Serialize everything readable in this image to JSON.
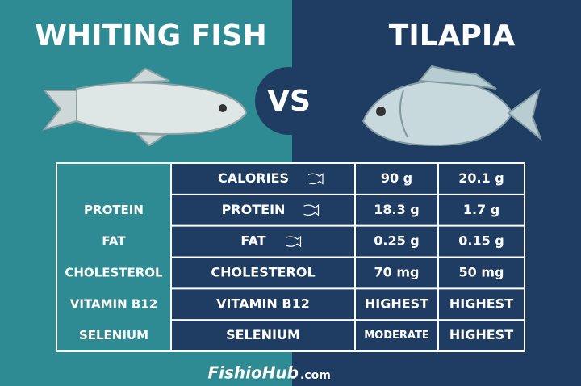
{
  "header": {
    "left_title": "WHITING FISH",
    "right_title": "TILAPIA",
    "vs": "VS"
  },
  "table": {
    "side_labels": [
      "PROTEIN",
      "FAT",
      "CHOLESTEROL",
      "VITAMIN B12",
      "SELENIUM"
    ],
    "rows": [
      [
        "CALORIES",
        "90 g",
        "20.1 g"
      ],
      [
        "PROTEIN",
        "18.3 g",
        "1.7 g"
      ],
      [
        "FAT",
        "0.25 g",
        "0.15 g"
      ],
      [
        "CHOLESTEROL",
        "70 mg",
        "50 mg"
      ],
      [
        "VITAMIN B12",
        "HIGHEST",
        "HIGHEST"
      ],
      [
        "SELENIUM",
        "MODERATE",
        "HIGHEST"
      ]
    ]
  },
  "footer": {
    "brand": "FishioHub",
    "domain": ".com"
  }
}
